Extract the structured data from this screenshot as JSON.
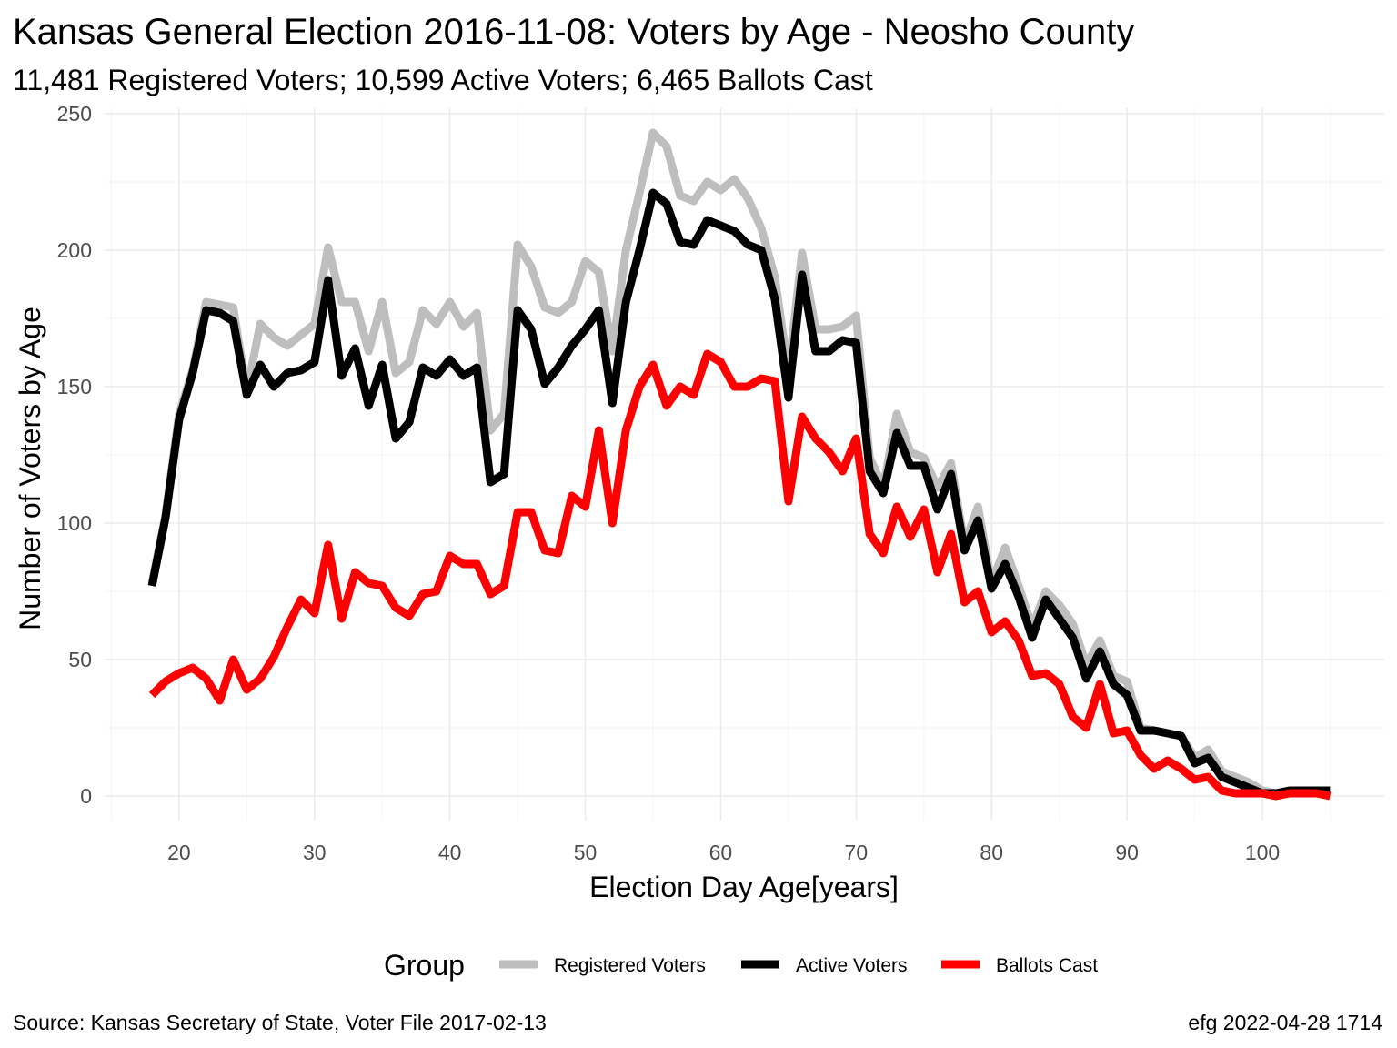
{
  "chart_data": {
    "type": "line",
    "title": "Kansas General Election 2016-11-08:  Voters by Age - Neosho County",
    "subtitle": "11,481 Registered Voters; 10,599 Active Voters; 6,465 Ballots Cast",
    "xlabel": "Election Day Age[years]",
    "ylabel": "Number of Voters by Age",
    "xlim": [
      14.5,
      109
    ],
    "ylim": [
      -9,
      252
    ],
    "x_ticks": [
      20,
      30,
      40,
      50,
      60,
      70,
      80,
      90,
      100
    ],
    "y_ticks": [
      0,
      50,
      100,
      150,
      200,
      250
    ],
    "x_tick_labels": [
      "20",
      "30",
      "40",
      "50",
      "60",
      "70",
      "80",
      "90",
      "100"
    ],
    "y_tick_labels": [
      "0",
      "50",
      "100",
      "150",
      "200",
      "250"
    ],
    "grid": true,
    "legend_position": "bottom",
    "legend_title": "Group",
    "x": [
      18,
      19,
      20,
      21,
      22,
      23,
      24,
      25,
      26,
      27,
      28,
      29,
      30,
      31,
      32,
      33,
      34,
      35,
      36,
      37,
      38,
      39,
      40,
      41,
      42,
      43,
      44,
      45,
      46,
      47,
      48,
      49,
      50,
      51,
      52,
      53,
      54,
      55,
      56,
      57,
      58,
      59,
      60,
      61,
      62,
      63,
      64,
      65,
      66,
      67,
      68,
      69,
      70,
      71,
      72,
      73,
      74,
      75,
      76,
      77,
      78,
      79,
      80,
      81,
      82,
      83,
      84,
      85,
      86,
      87,
      88,
      89,
      90,
      91,
      92,
      93,
      94,
      95,
      96,
      97,
      98,
      99,
      100,
      101,
      102,
      103,
      104,
      105
    ],
    "series": [
      {
        "name": "Registered Voters",
        "color": "#bebebe",
        "values": [
          78,
          103,
          140,
          156,
          181,
          180,
          179,
          148,
          173,
          168,
          165,
          169,
          173,
          201,
          181,
          181,
          163,
          181,
          155,
          159,
          178,
          173,
          181,
          172,
          177,
          134,
          140,
          202,
          194,
          179,
          177,
          181,
          196,
          192,
          163,
          200,
          221,
          243,
          238,
          220,
          218,
          225,
          222,
          226,
          219,
          208,
          190,
          155,
          199,
          171,
          171,
          172,
          176,
          124,
          113,
          140,
          126,
          124,
          113,
          122,
          92,
          106,
          78,
          91,
          77,
          62,
          75,
          70,
          63,
          48,
          57,
          44,
          42,
          25,
          24,
          23,
          22,
          14,
          17,
          9,
          7,
          5,
          2,
          1,
          1,
          1,
          1,
          1
        ]
      },
      {
        "name": "Active Voters",
        "color": "#000000",
        "values": [
          77,
          102,
          138,
          155,
          178,
          177,
          174,
          147,
          158,
          150,
          155,
          156,
          159,
          189,
          154,
          164,
          143,
          158,
          131,
          137,
          157,
          154,
          160,
          154,
          157,
          115,
          118,
          178,
          171,
          151,
          157,
          165,
          171,
          178,
          144,
          181,
          200,
          221,
          217,
          203,
          202,
          211,
          209,
          207,
          202,
          200,
          182,
          146,
          191,
          163,
          163,
          167,
          166,
          119,
          111,
          133,
          121,
          121,
          105,
          118,
          90,
          101,
          76,
          85,
          73,
          58,
          72,
          65,
          58,
          43,
          53,
          41,
          37,
          24,
          24,
          23,
          22,
          12,
          14,
          7,
          5,
          3,
          1,
          1,
          2,
          2,
          2,
          2
        ]
      },
      {
        "name": "Ballots Cast",
        "color": "#ff0000",
        "values": [
          37,
          42,
          45,
          47,
          43,
          35,
          50,
          39,
          43,
          51,
          62,
          72,
          67,
          92,
          65,
          82,
          78,
          77,
          69,
          66,
          74,
          75,
          88,
          85,
          85,
          74,
          77,
          104,
          104,
          90,
          89,
          110,
          106,
          134,
          100,
          134,
          150,
          158,
          143,
          150,
          147,
          162,
          159,
          150,
          150,
          153,
          152,
          108,
          139,
          131,
          126,
          119,
          131,
          96,
          89,
          106,
          95,
          105,
          82,
          96,
          71,
          75,
          60,
          64,
          57,
          44,
          45,
          41,
          29,
          25,
          41,
          23,
          24,
          15,
          10,
          13,
          10,
          6,
          7,
          2,
          1,
          1,
          1,
          0,
          1,
          1,
          1,
          0
        ]
      }
    ]
  },
  "legend_labels": [
    "Registered Voters",
    "Active Voters",
    "Ballots Cast"
  ],
  "caption_left": "Source:  Kansas Secretary of State, Voter File  2017-02-13",
  "caption_right": "efg 2022-04-28 1714"
}
